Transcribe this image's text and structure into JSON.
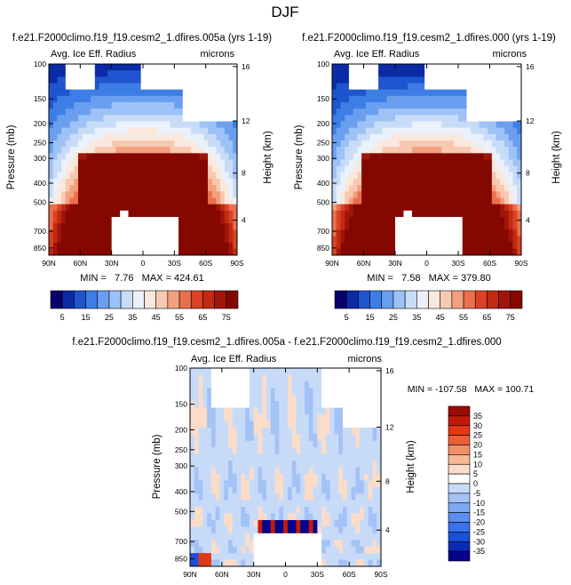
{
  "figure": {
    "title": "DJF"
  },
  "colors": {
    "warm_scale": [
      "#08006e",
      "#0b2aa6",
      "#1f54cf",
      "#3d7ee6",
      "#6a9ff0",
      "#9cc2f7",
      "#c8dcf8",
      "#eaf1fb",
      "#fbe8dd",
      "#f8c9b0",
      "#f3a07f",
      "#ea6f4e",
      "#d94226",
      "#c22a12",
      "#a0150a",
      "#850800"
    ],
    "diff_scale": [
      "#04038a",
      "#0b2ab5",
      "#1c4fd8",
      "#3a72e8",
      "#5a8eef",
      "#7ea8f3",
      "#a3c2f6",
      "#c7dbf9",
      "#ffffff",
      "#fbdcc8",
      "#f7b896",
      "#f38f68",
      "#ec5f36",
      "#e23815",
      "#c21a0a",
      "#9a0a06"
    ],
    "missing": "#ffffff"
  },
  "chart_data": [
    {
      "type": "heatmap",
      "title": "f.e21.F2000climo.f19_f19.cesm2_1.dfires.005a (yrs 1-19)",
      "left_string": "Avg. Ice Eff. Radius",
      "right_string": "microns",
      "xlabel": "",
      "ylabel": "Pressure (mb)",
      "ylabel_right": "Height (km)",
      "x_ticks": [
        "90N",
        "60N",
        "30N",
        "0",
        "30S",
        "60S",
        "90S"
      ],
      "y_ticks": [
        "100",
        "150",
        "200",
        "250",
        "300",
        "400",
        "500",
        "700",
        "850"
      ],
      "y_ticks_right": [
        "16",
        "12",
        "8",
        "4"
      ],
      "x_range": [
        90,
        -90
      ],
      "y_range": [
        100,
        925
      ],
      "y_scale": "log",
      "stats": "MIN =   7.76   MAX = 424.61",
      "colorbar_labels": [
        "5",
        "15",
        "25",
        "35",
        "45",
        "55",
        "65",
        "75"
      ],
      "colorbar_levels": [
        5,
        10,
        15,
        20,
        25,
        30,
        35,
        40,
        45,
        50,
        55,
        60,
        65,
        70,
        75
      ]
    },
    {
      "type": "heatmap",
      "title": "f.e21.F2000climo.f19_f19.cesm2_1.dfires.000 (yrs 1-19)",
      "left_string": "Avg. Ice Eff. Radius",
      "right_string": "microns",
      "xlabel": "",
      "ylabel": "Pressure (mb)",
      "ylabel_right": "Height (km)",
      "x_ticks": [
        "90N",
        "60N",
        "30N",
        "0",
        "30S",
        "60S",
        "90S"
      ],
      "y_ticks": [
        "100",
        "150",
        "200",
        "250",
        "300",
        "400",
        "500",
        "700",
        "850"
      ],
      "y_ticks_right": [
        "16",
        "12",
        "8",
        "4"
      ],
      "x_range": [
        90,
        -90
      ],
      "y_range": [
        100,
        925
      ],
      "y_scale": "log",
      "stats": "MIN =   7.58   MAX = 379.80",
      "colorbar_labels": [
        "5",
        "15",
        "25",
        "35",
        "45",
        "55",
        "65",
        "75"
      ],
      "colorbar_levels": [
        5,
        10,
        15,
        20,
        25,
        30,
        35,
        40,
        45,
        50,
        55,
        60,
        65,
        70,
        75
      ]
    },
    {
      "type": "heatmap",
      "title": "f.e21.F2000climo.f19_f19.cesm2_1.dfires.005a - f.e21.F2000climo.f19_f19.cesm2_1.dfires.000",
      "left_string": "Avg. Ice Eff. Radius",
      "right_string": "microns",
      "xlabel": "",
      "ylabel": "Pressure (mb)",
      "ylabel_right": "Height (km)",
      "x_ticks": [
        "90N",
        "60N",
        "30N",
        "0",
        "30S",
        "60S",
        "90S"
      ],
      "y_ticks": [
        "100",
        "150",
        "200",
        "250",
        "300",
        "400",
        "500",
        "700",
        "850"
      ],
      "y_ticks_right": [
        "16",
        "12",
        "8",
        "4"
      ],
      "x_range": [
        90,
        -90
      ],
      "y_range": [
        100,
        925
      ],
      "y_scale": "log",
      "stats": "MIN = -107.58   MAX = 100.71",
      "colorbar_labels": [
        "35",
        "30",
        "25",
        "20",
        "15",
        "10",
        "5",
        "0",
        "-5",
        "-10",
        "-15",
        "-20",
        "-25",
        "-30",
        "-35"
      ],
      "colorbar_levels": [
        35,
        30,
        25,
        20,
        15,
        10,
        5,
        0,
        -5,
        -10,
        -15,
        -20,
        -25,
        -30,
        -35
      ]
    }
  ]
}
